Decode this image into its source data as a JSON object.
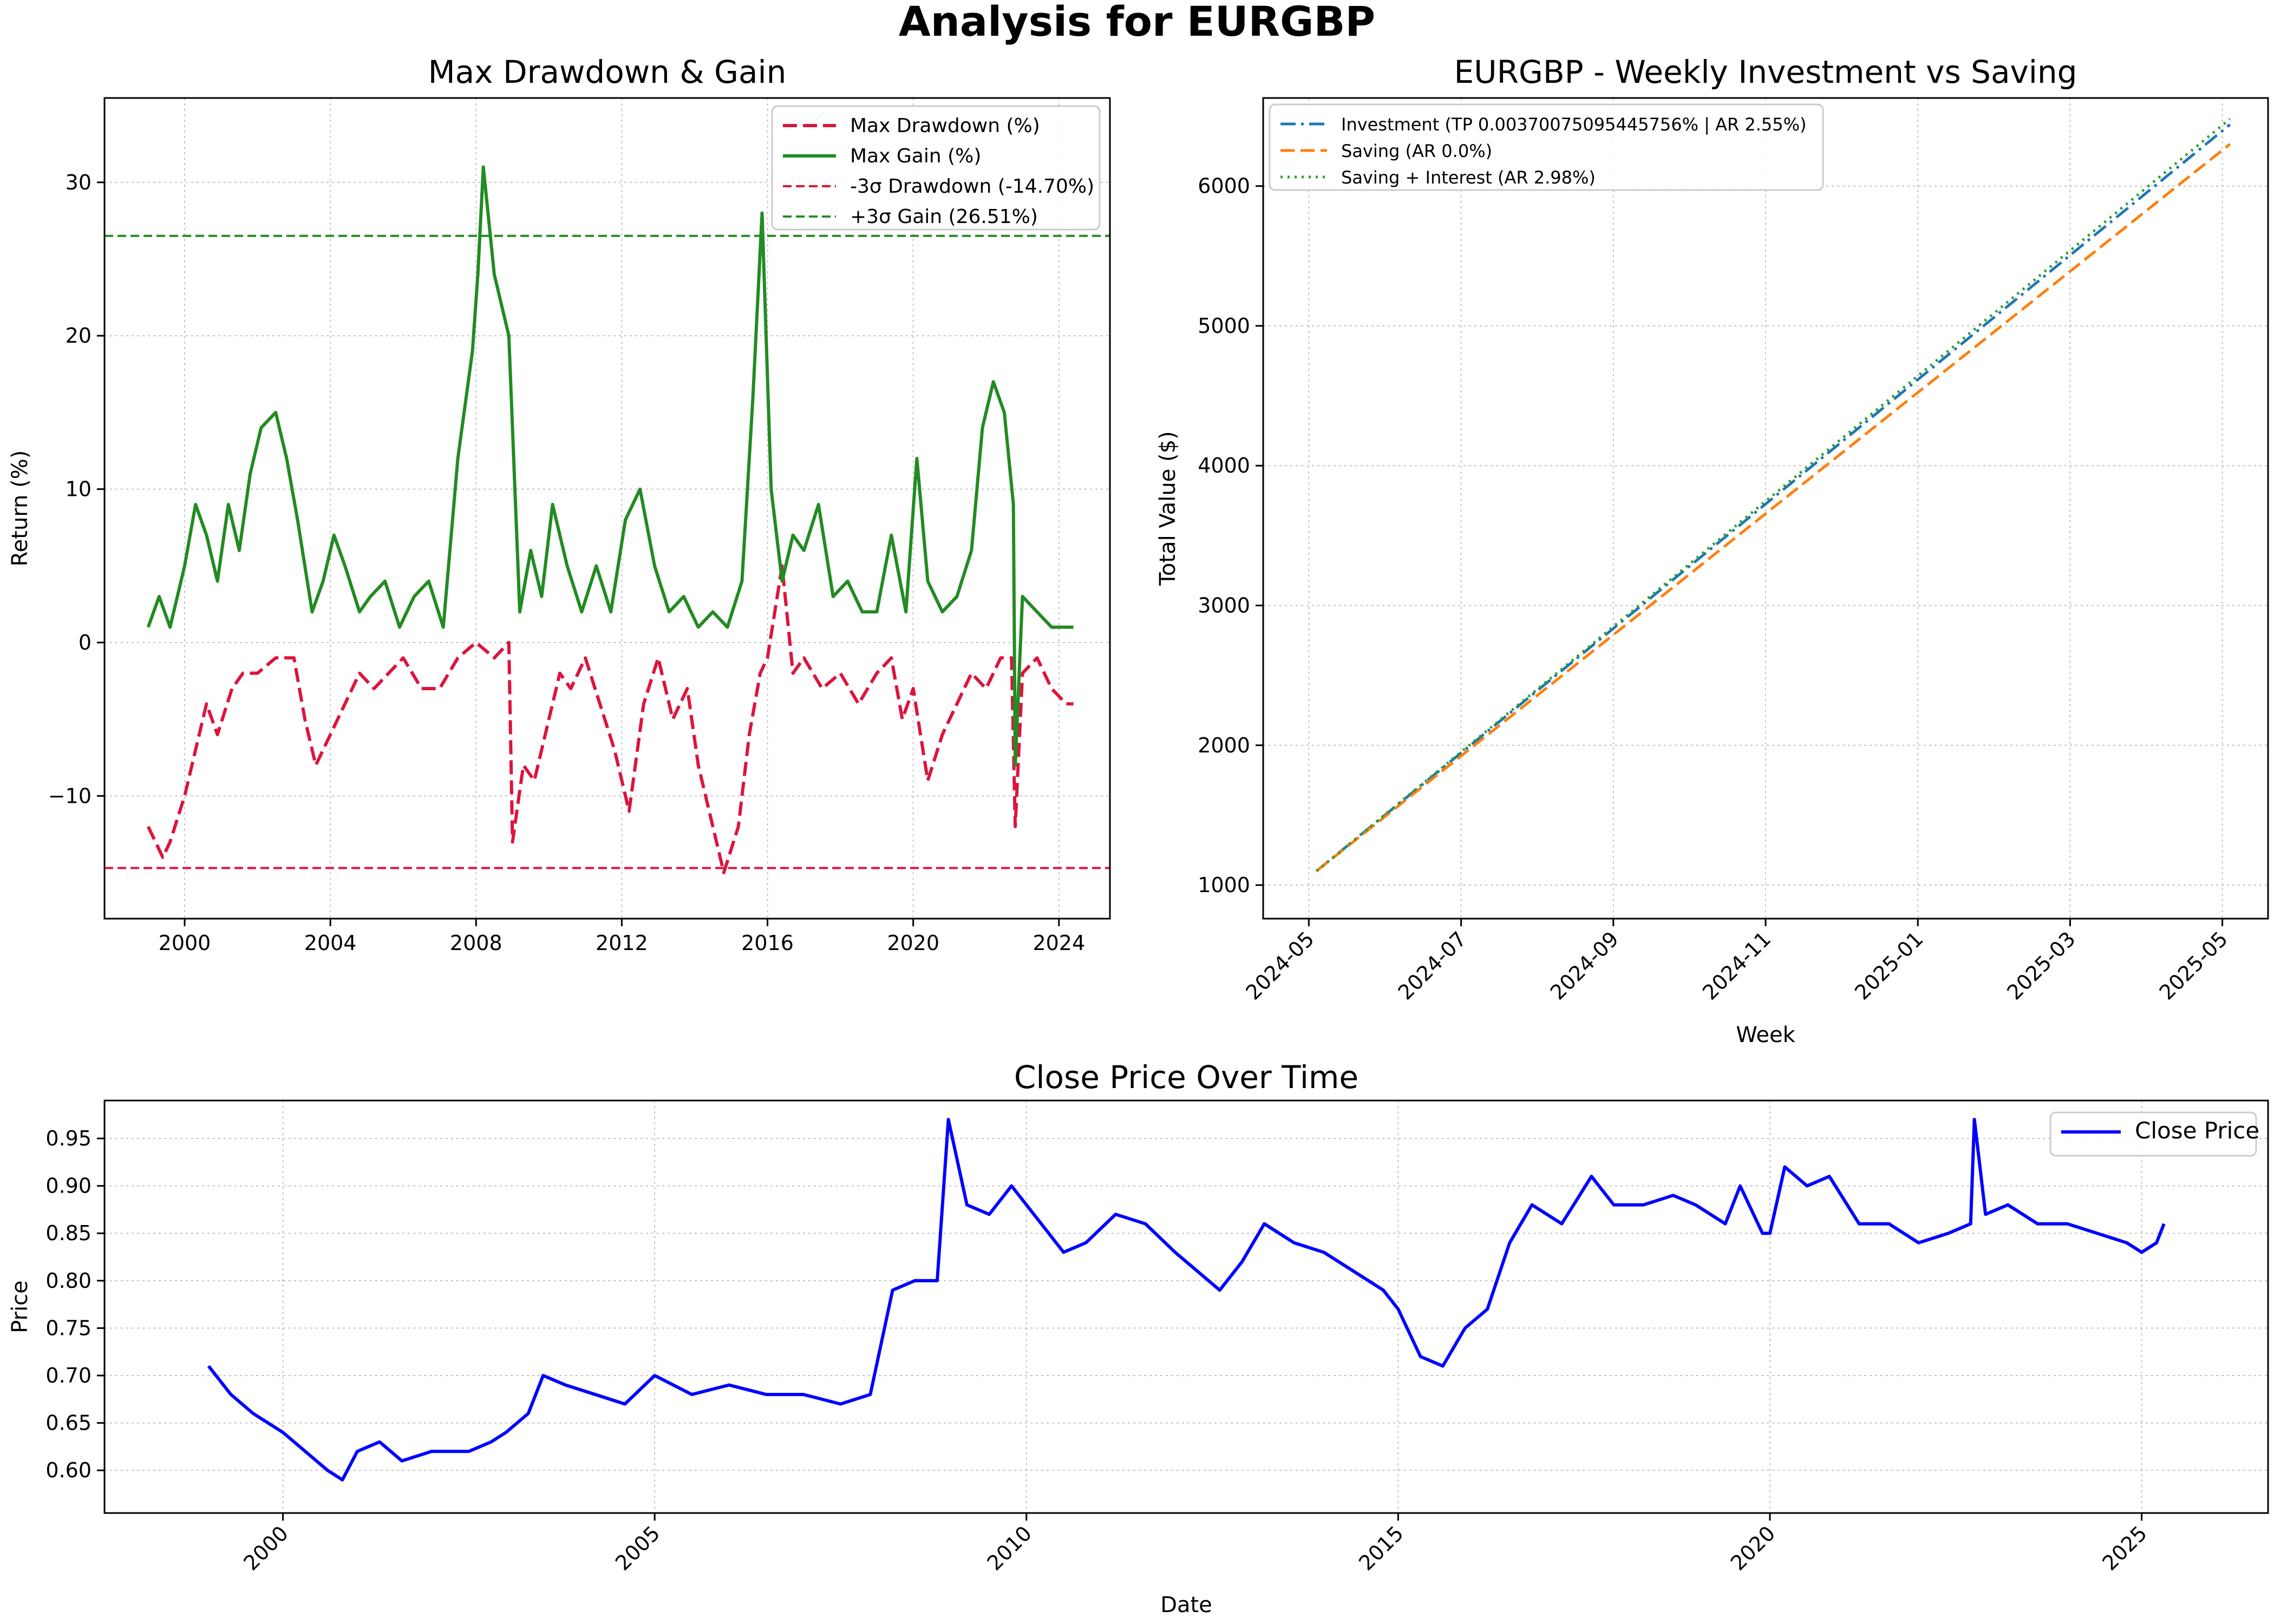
{
  "figure": {
    "title": "Analysis for EURGBP"
  },
  "chart_data": [
    {
      "id": "drawdown",
      "type": "line",
      "title": "Max Drawdown & Gain",
      "xlabel": "",
      "ylabel": "Return (%)",
      "xlim": [
        1997.8,
        2025.4
      ],
      "ylim": [
        -18,
        35.5
      ],
      "xticks": [
        2000,
        2004,
        2008,
        2012,
        2016,
        2020,
        2024
      ],
      "xtick_labels": [
        "2000",
        "2004",
        "2008",
        "2012",
        "2016",
        "2020",
        "2024"
      ],
      "yticks": [
        -10,
        0,
        10,
        20,
        30
      ],
      "ytick_labels": [
        "−10",
        "0",
        "10",
        "20",
        "30"
      ],
      "grid": true,
      "legend_position": "top-right",
      "series": [
        {
          "name": "Max Drawdown (%)",
          "color": "#dc143c",
          "style": "dashed",
          "x": [
            1999.0,
            1999.4,
            1999.6,
            2000.0,
            2000.3,
            2000.6,
            2000.9,
            2001.3,
            2001.6,
            2002.0,
            2002.5,
            2003.0,
            2003.3,
            2003.6,
            2004.0,
            2004.4,
            2004.8,
            2005.2,
            2005.6,
            2006.0,
            2006.5,
            2007.0,
            2007.5,
            2008.0,
            2008.5,
            2008.9,
            2009.0,
            2009.3,
            2009.6,
            2010.0,
            2010.3,
            2010.6,
            2011.0,
            2011.4,
            2011.8,
            2012.2,
            2012.6,
            2013.0,
            2013.4,
            2013.8,
            2014.1,
            2014.4,
            2014.8,
            2015.2,
            2015.5,
            2015.8,
            2016.0,
            2016.4,
            2016.7,
            2017.0,
            2017.5,
            2018.0,
            2018.5,
            2019.0,
            2019.4,
            2019.7,
            2020.0,
            2020.4,
            2020.8,
            2021.2,
            2021.6,
            2022.0,
            2022.4,
            2022.7,
            2022.8,
            2023.0,
            2023.4,
            2023.8,
            2024.2,
            2024.4
          ],
          "values": [
            -12,
            -14,
            -13,
            -10,
            -7,
            -4,
            -6,
            -3,
            -2,
            -2,
            -1,
            -1,
            -5,
            -8,
            -6,
            -4,
            -2,
            -3,
            -2,
            -1,
            -3,
            -3,
            -1,
            0,
            -1,
            0,
            -13,
            -8,
            -9,
            -5,
            -2,
            -3,
            -1,
            -4,
            -7,
            -11,
            -4,
            -1,
            -5,
            -3,
            -8,
            -11,
            -15,
            -12,
            -6,
            -2,
            -1,
            5,
            -2,
            -1,
            -3,
            -2,
            -4,
            -2,
            -1,
            -5,
            -3,
            -9,
            -6,
            -4,
            -2,
            -3,
            -1,
            -1,
            -12,
            -2,
            -1,
            -3,
            -4,
            -4
          ]
        },
        {
          "name": "Max Gain (%)",
          "color": "#228b22",
          "style": "solid",
          "x": [
            1999.0,
            1999.3,
            1999.6,
            2000.0,
            2000.3,
            2000.6,
            2000.9,
            2001.2,
            2001.5,
            2001.8,
            2002.1,
            2002.5,
            2002.8,
            2003.1,
            2003.5,
            2003.8,
            2004.1,
            2004.4,
            2004.8,
            2005.1,
            2005.5,
            2005.9,
            2006.3,
            2006.7,
            2007.1,
            2007.5,
            2007.9,
            2008.05,
            2008.2,
            2008.5,
            2008.9,
            2009.2,
            2009.5,
            2009.8,
            2010.1,
            2010.5,
            2010.9,
            2011.3,
            2011.7,
            2012.1,
            2012.5,
            2012.9,
            2013.3,
            2013.7,
            2014.1,
            2014.5,
            2014.9,
            2015.3,
            2015.6,
            2015.85,
            2016.1,
            2016.4,
            2016.7,
            2017.0,
            2017.4,
            2017.8,
            2018.2,
            2018.6,
            2019.0,
            2019.4,
            2019.8,
            2020.1,
            2020.4,
            2020.8,
            2021.2,
            2021.6,
            2021.9,
            2022.2,
            2022.5,
            2022.75,
            2022.8,
            2023.0,
            2023.4,
            2023.8,
            2024.2,
            2024.4
          ],
          "values": [
            1,
            3,
            1,
            5,
            9,
            7,
            4,
            9,
            6,
            11,
            14,
            15,
            12,
            8,
            2,
            4,
            7,
            5,
            2,
            3,
            4,
            1,
            3,
            4,
            1,
            12,
            19,
            24,
            31,
            24,
            20,
            2,
            6,
            3,
            9,
            5,
            2,
            5,
            2,
            8,
            10,
            5,
            2,
            3,
            1,
            2,
            1,
            4,
            16,
            28,
            10,
            4,
            7,
            6,
            9,
            3,
            4,
            2,
            2,
            7,
            2,
            12,
            4,
            2,
            3,
            6,
            14,
            17,
            15,
            9,
            -8,
            3,
            2,
            1,
            1,
            1
          ]
        },
        {
          "name": "-3σ Drawdown (-14.70%)",
          "color": "#dc143c",
          "style": "dashed-thin",
          "y": -14.7
        },
        {
          "name": "+3σ Gain (26.51%)",
          "color": "#228b22",
          "style": "dashed-thin",
          "y": 26.51
        }
      ]
    },
    {
      "id": "investment",
      "type": "line",
      "title": "EURGBP - Weekly Investment vs Saving",
      "xlabel": "Week",
      "ylabel": "Total Value ($)",
      "xlim": [
        -0.6,
        12.6
      ],
      "ylim": [
        760,
        6630
      ],
      "xticks": [
        0,
        2,
        4,
        6,
        8,
        10,
        12
      ],
      "xtick_labels": [
        "2024-05",
        "2024-07",
        "2024-09",
        "2024-11",
        "2025-01",
        "2025-03",
        "2025-05"
      ],
      "yticks": [
        1000,
        2000,
        3000,
        4000,
        5000,
        6000
      ],
      "ytick_labels": [
        "1000",
        "2000",
        "3000",
        "4000",
        "5000",
        "6000"
      ],
      "grid": true,
      "legend_position": "top-left",
      "series": [
        {
          "name": "Investment (TP 0.00370075095445756% | AR 2.55%)",
          "color": "#1f77b4",
          "style": "dashdot",
          "x": [
            0.1,
            12.1
          ],
          "values": [
            1100,
            6440
          ]
        },
        {
          "name": "Saving (AR 0.0%)",
          "color": "#ff7f0e",
          "style": "dashed",
          "x": [
            0.1,
            12.1
          ],
          "values": [
            1100,
            6300
          ]
        },
        {
          "name": "Saving + Interest (AR 2.98%)",
          "color": "#2ca02c",
          "style": "dotted",
          "x": [
            0.1,
            12.1
          ],
          "values": [
            1100,
            6480
          ]
        }
      ]
    },
    {
      "id": "close",
      "type": "line",
      "title": "Close Price Over Time",
      "xlabel": "Date",
      "ylabel": "Price",
      "xlim": [
        1997.6,
        2026.7
      ],
      "ylim": [
        0.555,
        0.99
      ],
      "xticks": [
        2000,
        2005,
        2010,
        2015,
        2020,
        2025
      ],
      "xtick_labels": [
        "2000",
        "2005",
        "2010",
        "2015",
        "2020",
        "2025"
      ],
      "yticks": [
        0.6,
        0.65,
        0.7,
        0.75,
        0.8,
        0.85,
        0.9,
        0.95
      ],
      "ytick_labels": [
        "0.60",
        "0.65",
        "0.70",
        "0.75",
        "0.80",
        "0.85",
        "0.90",
        "0.95"
      ],
      "grid": true,
      "legend_position": "top-right",
      "series": [
        {
          "name": "Close Price",
          "color": "#0000ff",
          "style": "solid",
          "x": [
            1999.0,
            1999.3,
            1999.6,
            2000.0,
            2000.3,
            2000.6,
            2000.8,
            2001.0,
            2001.3,
            2001.6,
            2002.0,
            2002.5,
            2002.8,
            2003.0,
            2003.3,
            2003.5,
            2003.8,
            2004.2,
            2004.6,
            2005.0,
            2005.5,
            2006.0,
            2006.5,
            2007.0,
            2007.5,
            2007.9,
            2008.2,
            2008.5,
            2008.8,
            2008.95,
            2009.2,
            2009.5,
            2009.8,
            2010.2,
            2010.5,
            2010.8,
            2011.2,
            2011.6,
            2012.0,
            2012.3,
            2012.6,
            2012.9,
            2013.2,
            2013.6,
            2014.0,
            2014.4,
            2014.8,
            2015.0,
            2015.3,
            2015.6,
            2015.9,
            2016.2,
            2016.5,
            2016.8,
            2017.2,
            2017.6,
            2017.9,
            2018.3,
            2018.7,
            2019.0,
            2019.4,
            2019.6,
            2019.9,
            2020.0,
            2020.2,
            2020.5,
            2020.8,
            2021.2,
            2021.6,
            2022.0,
            2022.4,
            2022.7,
            2022.75,
            2022.9,
            2023.2,
            2023.6,
            2024.0,
            2024.4,
            2024.8,
            2025.0,
            2025.2,
            2025.3
          ],
          "values": [
            0.71,
            0.68,
            0.66,
            0.64,
            0.62,
            0.6,
            0.59,
            0.62,
            0.63,
            0.61,
            0.62,
            0.62,
            0.63,
            0.64,
            0.66,
            0.7,
            0.69,
            0.68,
            0.67,
            0.7,
            0.68,
            0.69,
            0.68,
            0.68,
            0.67,
            0.68,
            0.79,
            0.8,
            0.8,
            0.97,
            0.88,
            0.87,
            0.9,
            0.86,
            0.83,
            0.84,
            0.87,
            0.86,
            0.83,
            0.81,
            0.79,
            0.82,
            0.86,
            0.84,
            0.83,
            0.81,
            0.79,
            0.77,
            0.72,
            0.71,
            0.75,
            0.77,
            0.84,
            0.88,
            0.86,
            0.91,
            0.88,
            0.88,
            0.89,
            0.88,
            0.86,
            0.9,
            0.85,
            0.85,
            0.92,
            0.9,
            0.91,
            0.86,
            0.86,
            0.84,
            0.85,
            0.86,
            0.97,
            0.87,
            0.88,
            0.86,
            0.86,
            0.85,
            0.84,
            0.83,
            0.84,
            0.86
          ]
        }
      ]
    }
  ]
}
